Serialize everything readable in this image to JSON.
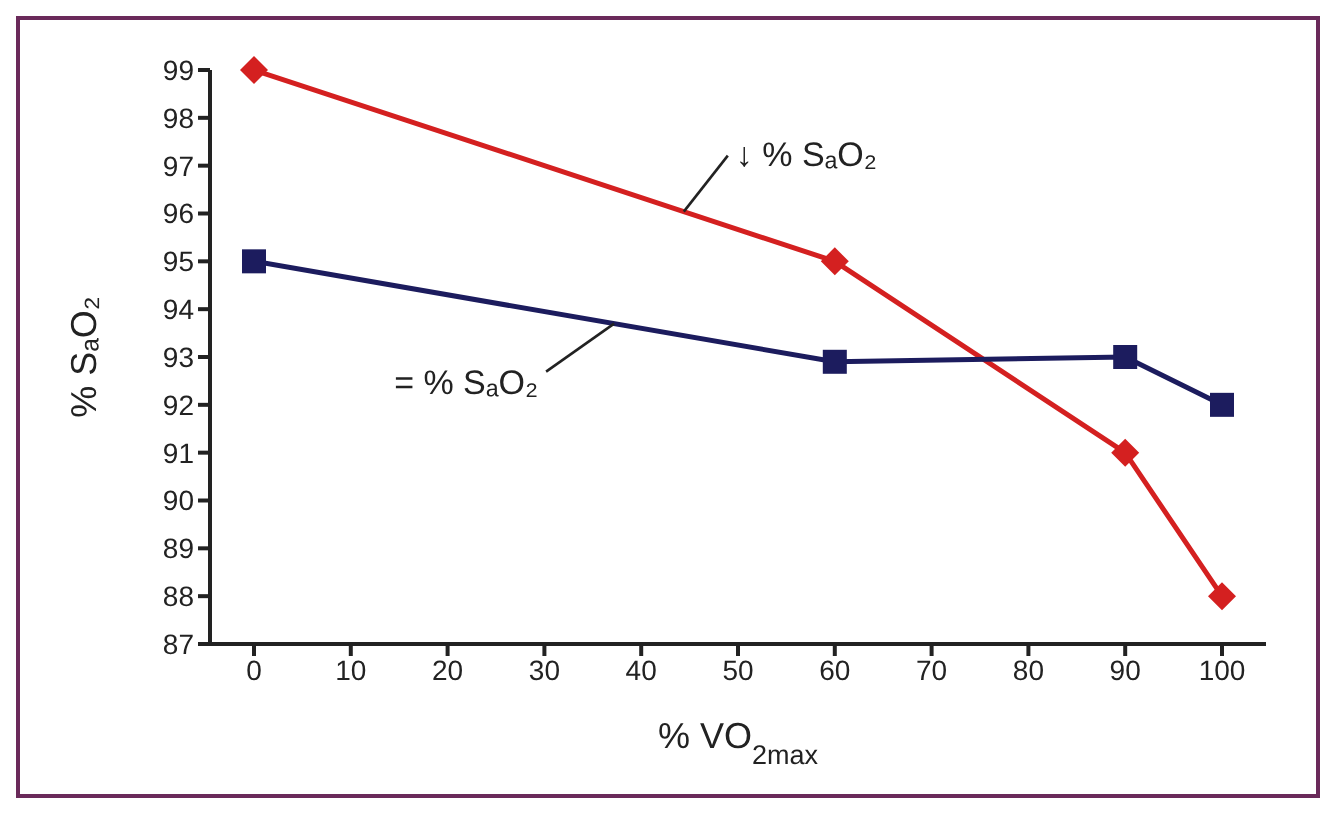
{
  "chart_data": {
    "type": "line",
    "xlabel": "% VO$_{2max}$",
    "ylabel": "% SₐO₂",
    "categories": [
      "0",
      "10",
      "20",
      "30",
      "40",
      "50",
      "60",
      "70",
      "80",
      "90",
      "100"
    ],
    "series": [
      {
        "name": "↓ % SₐO₂",
        "color": "#d42020",
        "marker": "diamond",
        "values": [
          99,
          null,
          null,
          null,
          null,
          null,
          95,
          null,
          null,
          91,
          88
        ]
      },
      {
        "name": "= % SₐO₂",
        "color": "#1c1c5e",
        "marker": "square",
        "values": [
          95,
          null,
          null,
          null,
          null,
          null,
          92.9,
          null,
          null,
          93,
          92
        ]
      }
    ],
    "ylim": [
      87,
      99
    ],
    "yticks": [
      87,
      88,
      89,
      90,
      91,
      92,
      93,
      94,
      95,
      96,
      97,
      98,
      99
    ],
    "grid": false,
    "legend": false,
    "line_style": "solid"
  }
}
